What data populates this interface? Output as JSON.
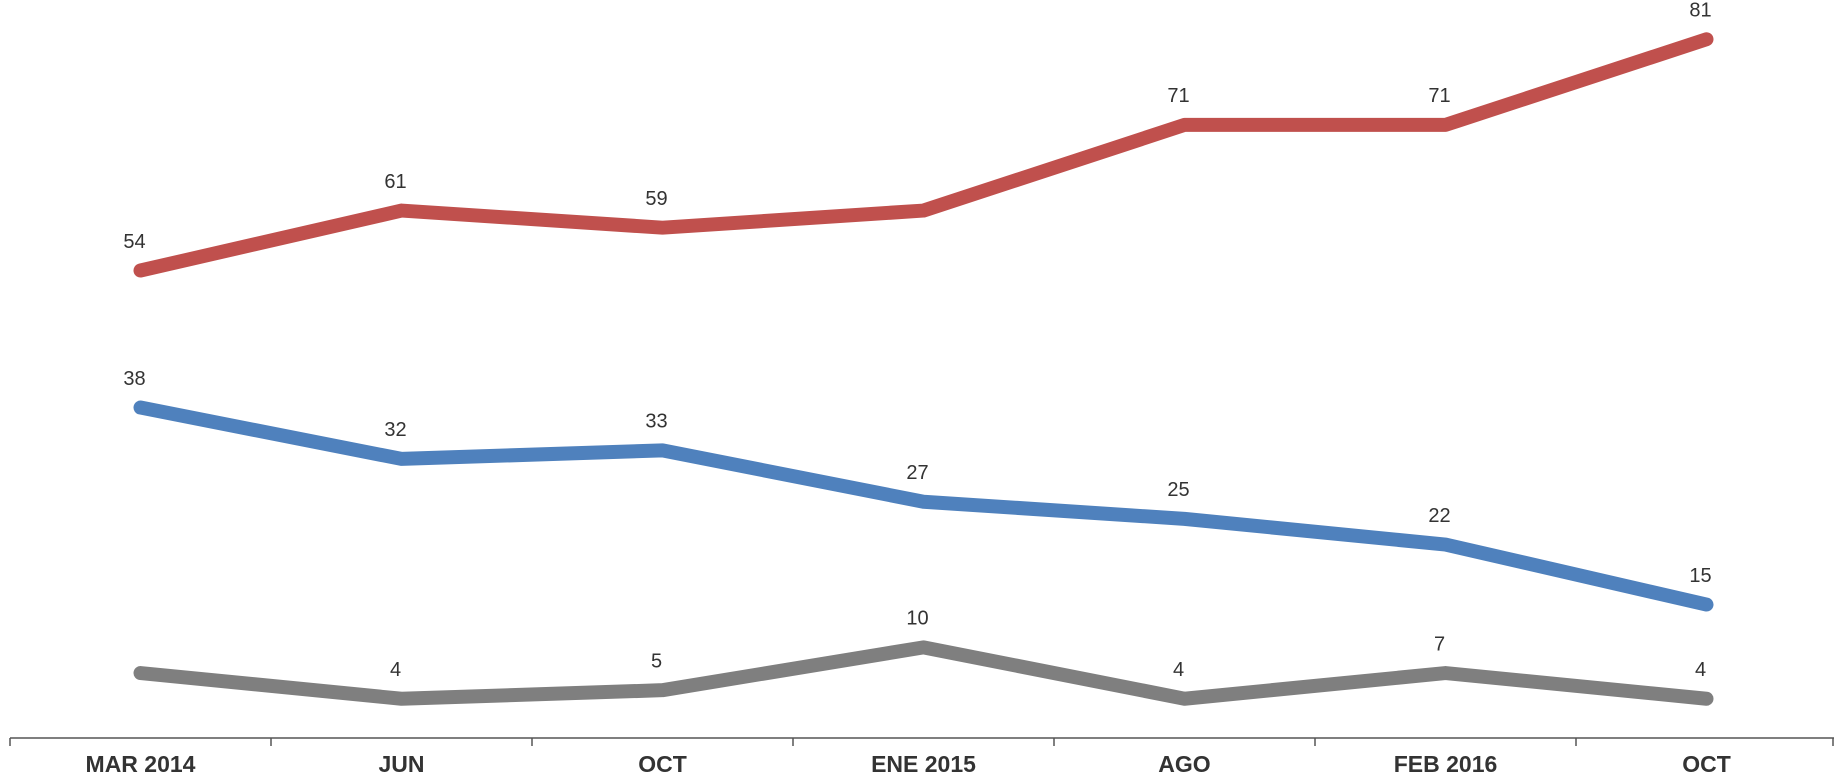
{
  "chart_data": {
    "type": "line",
    "categories": [
      "MAR 2014",
      "JUN",
      "OCT",
      "ENE 2015",
      "AGO",
      "FEB 2016",
      "OCT"
    ],
    "series": [
      {
        "color": "#c0504d",
        "values": [
          54,
          61,
          59,
          61,
          71,
          71,
          81
        ],
        "value_labels": [
          "54",
          "61",
          "59",
          null,
          "71",
          "71",
          "81"
        ]
      },
      {
        "color": "#4f81bd",
        "values": [
          38,
          32,
          33,
          27,
          25,
          22,
          15
        ]
      },
      {
        "color": "#7f7f7f",
        "values": [
          7,
          4,
          5,
          10,
          4,
          7,
          4
        ],
        "value_labels": [
          null,
          "4",
          "5",
          "10",
          "4",
          "7",
          "4"
        ]
      }
    ],
    "ylim": [
      0,
      85
    ]
  }
}
